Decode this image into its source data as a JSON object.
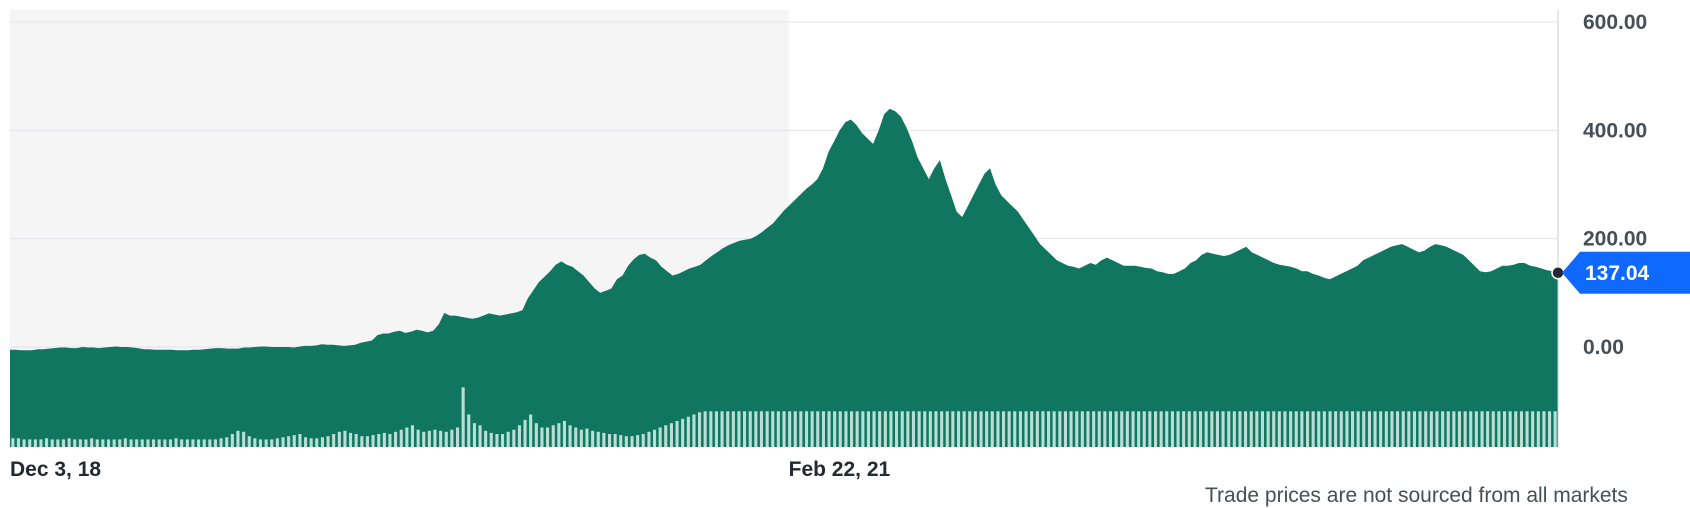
{
  "chart_data": {
    "type": "area",
    "ylim": [
      -100,
      600
    ],
    "y_ticks": [
      "600.00",
      "400.00",
      "200.00",
      "0.00"
    ],
    "y_tick_values": [
      600,
      400,
      200,
      0
    ],
    "x_labels": [
      "Dec 3, 18",
      "Feb 22, 21"
    ],
    "x_label_positions": [
      0,
      0.503
    ],
    "grid": true,
    "shaded_period_end": 0.503,
    "current_price": {
      "value": 137.04,
      "label": "137.04"
    },
    "colors": {
      "area": "#107660",
      "volume": "#b9ded4",
      "price_badge": "#0f69ff",
      "shade": "#f5f5f5",
      "grid": "#e0e4e9"
    },
    "price": [
      -5,
      -5,
      -6,
      -6,
      -6,
      -4,
      -4,
      -3,
      -2,
      -1,
      -1,
      -2,
      -2,
      0,
      -1,
      -1,
      -2,
      -1,
      0,
      1,
      0,
      0,
      -1,
      -2,
      -4,
      -4,
      -5,
      -5,
      -5,
      -5,
      -6,
      -6,
      -6,
      -5,
      -5,
      -4,
      -3,
      -2,
      -2,
      -3,
      -3,
      -3,
      -1,
      -1,
      0,
      1,
      1,
      0,
      0,
      0,
      0,
      -1,
      1,
      2,
      2,
      3,
      5,
      4,
      4,
      3,
      2,
      3,
      4,
      8,
      10,
      12,
      22,
      25,
      25,
      28,
      30,
      26,
      28,
      32,
      30,
      27,
      30,
      42,
      63,
      58,
      58,
      56,
      54,
      52,
      54,
      58,
      62,
      60,
      58,
      60,
      62,
      64,
      68,
      90,
      105,
      120,
      130,
      140,
      152,
      158,
      152,
      148,
      140,
      132,
      120,
      108,
      100,
      104,
      108,
      125,
      132,
      150,
      162,
      170,
      172,
      165,
      160,
      148,
      140,
      132,
      135,
      140,
      145,
      148,
      152,
      160,
      168,
      175,
      182,
      188,
      192,
      196,
      198,
      200,
      205,
      212,
      220,
      228,
      240,
      252,
      262,
      272,
      282,
      292,
      300,
      310,
      330,
      360,
      380,
      400,
      415,
      420,
      410,
      395,
      385,
      375,
      400,
      430,
      440,
      435,
      425,
      405,
      380,
      350,
      330,
      310,
      330,
      345,
      310,
      280,
      250,
      240,
      260,
      280,
      300,
      320,
      330,
      300,
      280,
      270,
      260,
      250,
      235,
      220,
      205,
      190,
      180,
      170,
      160,
      155,
      150,
      148,
      145,
      150,
      155,
      152,
      160,
      165,
      160,
      155,
      150,
      150,
      150,
      148,
      146,
      145,
      140,
      138,
      135,
      135,
      140,
      145,
      155,
      160,
      170,
      175,
      172,
      170,
      168,
      170,
      175,
      180,
      185,
      175,
      170,
      165,
      160,
      155,
      152,
      150,
      148,
      145,
      140,
      140,
      135,
      132,
      128,
      125,
      130,
      135,
      140,
      145,
      150,
      160,
      165,
      170,
      175,
      180,
      185,
      188,
      190,
      185,
      180,
      175,
      178,
      185,
      190,
      188,
      185,
      180,
      175,
      170,
      160,
      150,
      140,
      138,
      140,
      145,
      150,
      150,
      152,
      155,
      155,
      150,
      148,
      145,
      142,
      140,
      137.04
    ],
    "volume": [
      8,
      8,
      7,
      7,
      7,
      7,
      8,
      7,
      7,
      7,
      8,
      7,
      7,
      7,
      8,
      7,
      7,
      7,
      7,
      7,
      8,
      7,
      7,
      7,
      7,
      7,
      7,
      7,
      7,
      8,
      7,
      7,
      7,
      7,
      7,
      7,
      7,
      8,
      9,
      12,
      15,
      14,
      10,
      8,
      7,
      7,
      7,
      8,
      9,
      10,
      11,
      12,
      9,
      8,
      8,
      9,
      10,
      12,
      14,
      15,
      13,
      12,
      10,
      10,
      11,
      12,
      13,
      12,
      14,
      16,
      18,
      20,
      16,
      14,
      15,
      16,
      15,
      14,
      16,
      18,
      55,
      30,
      22,
      20,
      15,
      13,
      12,
      12,
      14,
      16,
      20,
      25,
      30,
      22,
      18,
      18,
      20,
      22,
      24,
      20,
      18,
      16,
      17,
      15,
      14,
      13,
      12,
      12,
      11,
      10,
      10,
      11,
      12,
      14,
      16,
      18,
      20,
      22,
      24,
      26,
      28,
      30,
      32,
      33,
      33,
      33,
      33,
      33,
      33,
      33,
      33,
      33,
      33,
      33,
      33,
      33,
      33,
      33,
      33,
      33,
      33,
      33,
      33,
      33,
      33,
      33,
      33,
      33,
      33,
      33,
      33,
      33,
      33,
      33,
      33,
      33,
      33,
      33,
      33,
      33,
      33,
      33,
      33,
      33,
      33,
      33,
      33,
      33,
      33,
      33,
      33,
      33,
      33,
      33,
      33,
      33,
      33,
      33,
      33,
      33,
      33,
      33,
      33,
      33,
      33,
      33,
      33,
      33,
      33,
      33,
      33,
      33,
      33,
      33,
      33,
      33,
      33,
      33,
      33,
      33,
      33,
      33,
      33,
      33,
      33,
      33,
      33,
      33,
      33,
      33,
      33,
      33,
      33,
      33,
      33,
      33,
      33,
      33,
      33,
      33,
      33,
      33,
      33,
      33,
      33,
      33,
      33,
      33,
      33,
      33,
      33,
      33,
      33,
      33,
      33,
      33,
      33,
      33,
      33,
      33,
      33,
      33,
      33,
      33,
      33,
      33,
      33,
      33,
      33,
      33,
      33,
      33,
      33,
      33,
      33,
      33,
      33,
      33,
      33,
      33,
      33,
      33,
      33,
      33,
      33,
      33,
      33,
      33,
      33,
      33,
      33,
      33,
      33,
      33,
      33
    ]
  },
  "footnote": "Trade prices are not sourced from all markets"
}
